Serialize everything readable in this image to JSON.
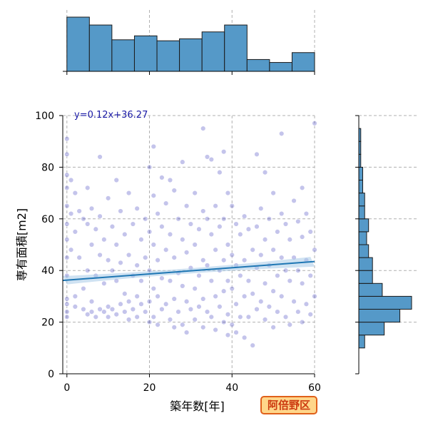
{
  "badge": {
    "label": "阿倍野区"
  },
  "chart_data": {
    "type": "scatter",
    "title": "",
    "xlabel": "築年数[年]",
    "ylabel": "専有面積[m2]",
    "xlim": [
      -1,
      60
    ],
    "ylim": [
      0,
      100
    ],
    "xticks": [
      0,
      20,
      40,
      60
    ],
    "yticks": [
      0,
      20,
      40,
      60,
      80,
      100
    ],
    "grid": true,
    "point_color": "#2b2bb8",
    "regression": {
      "label": "y=0.12x+36.27",
      "slope": 0.12,
      "intercept": 36.27,
      "color": "#1f77b4",
      "band_color": "#a8cbe8"
    },
    "points": [
      [
        0,
        91
      ],
      [
        0,
        85
      ],
      [
        0,
        77
      ],
      [
        0,
        72
      ],
      [
        0,
        65
      ],
      [
        0,
        58
      ],
      [
        0,
        52
      ],
      [
        0,
        45
      ],
      [
        0,
        38
      ],
      [
        0,
        29
      ],
      [
        0,
        27
      ],
      [
        0,
        24
      ],
      [
        0,
        22
      ],
      [
        1,
        75
      ],
      [
        1,
        62
      ],
      [
        1,
        48
      ],
      [
        2,
        70
      ],
      [
        2,
        55
      ],
      [
        2,
        30
      ],
      [
        2,
        26
      ],
      [
        3,
        63
      ],
      [
        3,
        45
      ],
      [
        4,
        60
      ],
      [
        4,
        33
      ],
      [
        4,
        25
      ],
      [
        5,
        72
      ],
      [
        5,
        58
      ],
      [
        5,
        40
      ],
      [
        5,
        23
      ],
      [
        6,
        64
      ],
      [
        6,
        50
      ],
      [
        6,
        28
      ],
      [
        6,
        24
      ],
      [
        7,
        56
      ],
      [
        7,
        38
      ],
      [
        7,
        22
      ],
      [
        8,
        84
      ],
      [
        8,
        61
      ],
      [
        8,
        46
      ],
      [
        8,
        25
      ],
      [
        9,
        52
      ],
      [
        9,
        35
      ],
      [
        9,
        24
      ],
      [
        10,
        68
      ],
      [
        10,
        44
      ],
      [
        10,
        26
      ],
      [
        10,
        22
      ],
      [
        11,
        57
      ],
      [
        11,
        40
      ],
      [
        11,
        25
      ],
      [
        12,
        75
      ],
      [
        12,
        50
      ],
      [
        12,
        36
      ],
      [
        12,
        23
      ],
      [
        13,
        63
      ],
      [
        13,
        43
      ],
      [
        13,
        27
      ],
      [
        14,
        54
      ],
      [
        14,
        31
      ],
      [
        14,
        24
      ],
      [
        15,
        70
      ],
      [
        15,
        46
      ],
      [
        15,
        28
      ],
      [
        15,
        21
      ],
      [
        16,
        58
      ],
      [
        16,
        38
      ],
      [
        16,
        25
      ],
      [
        17,
        64
      ],
      [
        17,
        42
      ],
      [
        17,
        30
      ],
      [
        17,
        22
      ],
      [
        18,
        52
      ],
      [
        18,
        36
      ],
      [
        18,
        27
      ],
      [
        19,
        60
      ],
      [
        19,
        45
      ],
      [
        19,
        24
      ],
      [
        20,
        80
      ],
      [
        20,
        55
      ],
      [
        20,
        40
      ],
      [
        20,
        28
      ],
      [
        20,
        20
      ],
      [
        21,
        88
      ],
      [
        21,
        69
      ],
      [
        21,
        50
      ],
      [
        21,
        33
      ],
      [
        21,
        22
      ],
      [
        22,
        62
      ],
      [
        22,
        44
      ],
      [
        22,
        30
      ],
      [
        22,
        19
      ],
      [
        23,
        76
      ],
      [
        23,
        57
      ],
      [
        23,
        37
      ],
      [
        23,
        25
      ],
      [
        24,
        66
      ],
      [
        24,
        48
      ],
      [
        24,
        27
      ],
      [
        25,
        75
      ],
      [
        25,
        54
      ],
      [
        25,
        36
      ],
      [
        25,
        21
      ],
      [
        26,
        71
      ],
      [
        26,
        45
      ],
      [
        26,
        29
      ],
      [
        26,
        18
      ],
      [
        27,
        60
      ],
      [
        27,
        39
      ],
      [
        27,
        24
      ],
      [
        28,
        82
      ],
      [
        28,
        52
      ],
      [
        28,
        34
      ],
      [
        28,
        19
      ],
      [
        29,
        65
      ],
      [
        29,
        47
      ],
      [
        29,
        28
      ],
      [
        29,
        16
      ],
      [
        30,
        58
      ],
      [
        30,
        41
      ],
      [
        30,
        25
      ],
      [
        31,
        70
      ],
      [
        31,
        50
      ],
      [
        31,
        33
      ],
      [
        31,
        21
      ],
      [
        32,
        56
      ],
      [
        32,
        38
      ],
      [
        32,
        26
      ],
      [
        33,
        95
      ],
      [
        33,
        63
      ],
      [
        33,
        44
      ],
      [
        33,
        29
      ],
      [
        33,
        18
      ],
      [
        34,
        84
      ],
      [
        34,
        60
      ],
      [
        34,
        42
      ],
      [
        34,
        24
      ],
      [
        35,
        83
      ],
      [
        35,
        54
      ],
      [
        35,
        36
      ],
      [
        35,
        22
      ],
      [
        36,
        65
      ],
      [
        36,
        48
      ],
      [
        36,
        30
      ],
      [
        36,
        17
      ],
      [
        37,
        78
      ],
      [
        37,
        57
      ],
      [
        37,
        40
      ],
      [
        37,
        26
      ],
      [
        38,
        86
      ],
      [
        38,
        60
      ],
      [
        38,
        44
      ],
      [
        38,
        32
      ],
      [
        38,
        20
      ],
      [
        39,
        70
      ],
      [
        39,
        50
      ],
      [
        39,
        36
      ],
      [
        39,
        23
      ],
      [
        39,
        15
      ],
      [
        40,
        65
      ],
      [
        40,
        46
      ],
      [
        40,
        33
      ],
      [
        40,
        19
      ],
      [
        41,
        58
      ],
      [
        41,
        42
      ],
      [
        41,
        27
      ],
      [
        41,
        16
      ],
      [
        42,
        54
      ],
      [
        42,
        38
      ],
      [
        42,
        22
      ],
      [
        43,
        61
      ],
      [
        43,
        44
      ],
      [
        43,
        30
      ],
      [
        43,
        14
      ],
      [
        44,
        56
      ],
      [
        44,
        36
      ],
      [
        44,
        22
      ],
      [
        45,
        48
      ],
      [
        45,
        31
      ],
      [
        45,
        11
      ],
      [
        46,
        85
      ],
      [
        46,
        57
      ],
      [
        46,
        41
      ],
      [
        46,
        25
      ],
      [
        47,
        64
      ],
      [
        47,
        46
      ],
      [
        47,
        28
      ],
      [
        48,
        78
      ],
      [
        48,
        52
      ],
      [
        48,
        35
      ],
      [
        48,
        21
      ],
      [
        49,
        60
      ],
      [
        49,
        42
      ],
      [
        49,
        26
      ],
      [
        50,
        70
      ],
      [
        50,
        48
      ],
      [
        50,
        32
      ],
      [
        50,
        18
      ],
      [
        51,
        55
      ],
      [
        51,
        38
      ],
      [
        51,
        24
      ],
      [
        52,
        93
      ],
      [
        52,
        62
      ],
      [
        52,
        45
      ],
      [
        52,
        30
      ],
      [
        53,
        58
      ],
      [
        53,
        40
      ],
      [
        53,
        22
      ],
      [
        54,
        52
      ],
      [
        54,
        36
      ],
      [
        54,
        19
      ],
      [
        55,
        67
      ],
      [
        55,
        45
      ],
      [
        55,
        28
      ],
      [
        56,
        59
      ],
      [
        56,
        40
      ],
      [
        56,
        24
      ],
      [
        57,
        72
      ],
      [
        57,
        53
      ],
      [
        57,
        35
      ],
      [
        57,
        20
      ],
      [
        58,
        62
      ],
      [
        58,
        44
      ],
      [
        58,
        27
      ],
      [
        59,
        55
      ],
      [
        59,
        38
      ],
      [
        59,
        23
      ],
      [
        60,
        97
      ],
      [
        60,
        48
      ],
      [
        60,
        30
      ]
    ],
    "marginal_x": {
      "bin_edges": [
        0,
        5.45,
        10.9,
        16.36,
        21.82,
        27.27,
        32.73,
        38.18,
        43.64,
        49.09,
        54.55,
        60
      ],
      "counts": [
        55,
        47,
        32,
        36,
        31,
        33,
        40,
        47,
        12,
        9,
        19
      ]
    },
    "marginal_y": {
      "bin_edges": [
        10,
        15,
        20,
        25,
        30,
        35,
        40,
        45,
        50,
        55,
        60,
        65,
        70,
        75,
        80,
        85,
        90,
        95
      ],
      "counts": [
        3,
        13,
        21,
        27,
        12,
        7,
        7,
        5,
        4,
        5,
        3,
        3,
        2,
        2,
        1,
        1,
        1
      ]
    }
  }
}
